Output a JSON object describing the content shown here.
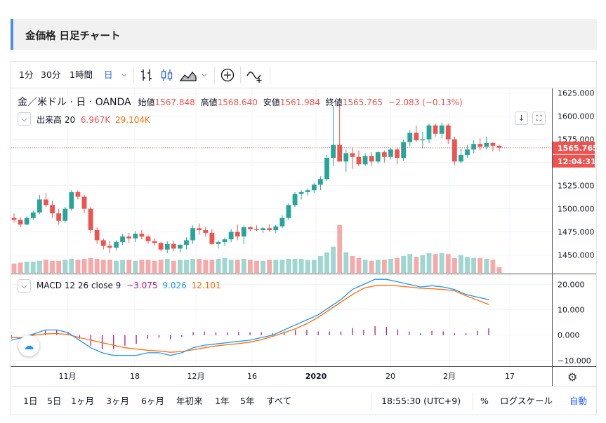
{
  "page_title": "金価格 日足チャート",
  "toolbar": {
    "intervals": [
      "1分",
      "30分",
      "1時間",
      "日"
    ],
    "active_interval": "日"
  },
  "legend": {
    "symbol": "金／米ドル · 日 · OANDA",
    "open_label": "始値",
    "open": "1567.848",
    "high_label": "高値",
    "high": "1568.640",
    "low_label": "安値",
    "low": "1561.984",
    "close_label": "終値",
    "close": "1565.765",
    "change": "−2.083 (−0.13%)"
  },
  "volume_legend": {
    "label": "出来高 20",
    "v1": "6.967K",
    "v2": "29.104K"
  },
  "macd_legend": {
    "label": "MACD 12 26 close 9",
    "v1": "−3.075",
    "v2": "9.026",
    "v3": "12.101"
  },
  "price_axis": {
    "ticks": [
      "1625.000",
      "1600.000",
      "1575.000",
      "1550.000",
      "1525.000",
      "1500.000",
      "1475.000",
      "1450.000"
    ],
    "last_price": "1565.765",
    "countdown": "12:04:31"
  },
  "macd_axis": {
    "ticks": [
      "20.000",
      "10.000",
      "0.000",
      "−10.000"
    ]
  },
  "time_axis": [
    "11月",
    "18",
    "12月",
    "16",
    "2020",
    "20",
    "2月",
    "17"
  ],
  "bottom_bar": {
    "ranges": [
      "1日",
      "5日",
      "1ヶ月",
      "3ヶ月",
      "6ヶ月",
      "年初来",
      "1年",
      "5年",
      "すべて"
    ],
    "clock": "18:55:30 (UTC+9)",
    "percent": "%",
    "log": "ログスケール",
    "auto": "自動"
  },
  "colors": {
    "up": "#26a69a",
    "down": "#ef5350",
    "macd": "#2196f3",
    "signal": "#ff6d00",
    "hist": "#ab1b8e",
    "accent": "#2962ff"
  },
  "chart_data": {
    "type": "candlestick",
    "candles": [
      [
        1490,
        1495,
        1485,
        1488
      ],
      [
        1488,
        1491,
        1480,
        1483
      ],
      [
        1483,
        1492,
        1482,
        1490
      ],
      [
        1490,
        1498,
        1488,
        1496
      ],
      [
        1496,
        1515,
        1494,
        1510
      ],
      [
        1510,
        1517,
        1502,
        1504
      ],
      [
        1504,
        1509,
        1490,
        1495
      ],
      [
        1495,
        1500,
        1483,
        1487
      ],
      [
        1487,
        1502,
        1485,
        1500
      ],
      [
        1500,
        1520,
        1498,
        1518
      ],
      [
        1518,
        1520,
        1510,
        1513
      ],
      [
        1513,
        1515,
        1495,
        1500
      ],
      [
        1500,
        1502,
        1474,
        1477
      ],
      [
        1477,
        1480,
        1462,
        1466
      ],
      [
        1466,
        1468,
        1456,
        1460
      ],
      [
        1460,
        1465,
        1452,
        1458
      ],
      [
        1458,
        1466,
        1455,
        1464
      ],
      [
        1464,
        1473,
        1461,
        1470
      ],
      [
        1470,
        1474,
        1463,
        1468
      ],
      [
        1468,
        1476,
        1464,
        1473
      ],
      [
        1473,
        1477,
        1467,
        1470
      ],
      [
        1470,
        1472,
        1462,
        1465
      ],
      [
        1465,
        1468,
        1460,
        1463
      ],
      [
        1463,
        1464,
        1454,
        1456
      ],
      [
        1456,
        1465,
        1452,
        1462
      ],
      [
        1462,
        1465,
        1454,
        1457
      ],
      [
        1457,
        1462,
        1453,
        1461
      ],
      [
        1461,
        1469,
        1456,
        1466
      ],
      [
        1466,
        1482,
        1462,
        1479
      ],
      [
        1479,
        1484,
        1472,
        1477
      ],
      [
        1477,
        1480,
        1470,
        1474
      ],
      [
        1474,
        1478,
        1461,
        1462
      ],
      [
        1462,
        1466,
        1457,
        1464
      ],
      [
        1464,
        1469,
        1460,
        1467
      ],
      [
        1467,
        1478,
        1464,
        1475
      ],
      [
        1475,
        1483,
        1466,
        1470
      ],
      [
        1470,
        1482,
        1462,
        1480
      ],
      [
        1480,
        1481,
        1476,
        1478
      ],
      [
        1478,
        1482,
        1476,
        1477
      ],
      [
        1477,
        1480,
        1474,
        1479
      ],
      [
        1479,
        1483,
        1475,
        1477
      ],
      [
        1477,
        1483,
        1474,
        1481
      ],
      [
        1481,
        1493,
        1479,
        1490
      ],
      [
        1490,
        1506,
        1488,
        1504
      ],
      [
        1504,
        1518,
        1502,
        1516
      ],
      [
        1516,
        1520,
        1510,
        1518
      ],
      [
        1518,
        1522,
        1514,
        1520
      ],
      [
        1520,
        1528,
        1517,
        1526
      ],
      [
        1526,
        1535,
        1520,
        1532
      ],
      [
        1532,
        1558,
        1530,
        1555
      ],
      [
        1555,
        1611,
        1546,
        1569
      ],
      [
        1569,
        1614,
        1551,
        1551
      ],
      [
        1551,
        1564,
        1540,
        1560
      ],
      [
        1560,
        1566,
        1543,
        1556
      ],
      [
        1556,
        1563,
        1546,
        1548
      ],
      [
        1548,
        1560,
        1546,
        1557
      ],
      [
        1557,
        1561,
        1546,
        1551
      ],
      [
        1551,
        1562,
        1549,
        1561
      ],
      [
        1561,
        1563,
        1550,
        1556
      ],
      [
        1556,
        1566,
        1553,
        1564
      ],
      [
        1564,
        1567,
        1548,
        1555
      ],
      [
        1555,
        1575,
        1552,
        1572
      ],
      [
        1572,
        1585,
        1567,
        1582
      ],
      [
        1582,
        1590,
        1572,
        1574
      ],
      [
        1574,
        1583,
        1565,
        1575
      ],
      [
        1575,
        1592,
        1571,
        1590
      ],
      [
        1590,
        1592,
        1578,
        1581
      ],
      [
        1581,
        1593,
        1576,
        1590
      ],
      [
        1590,
        1592,
        1570,
        1575
      ],
      [
        1575,
        1578,
        1547,
        1551
      ],
      [
        1551,
        1565,
        1549,
        1558
      ],
      [
        1558,
        1569,
        1555,
        1564
      ],
      [
        1564,
        1574,
        1560,
        1570
      ],
      [
        1570,
        1576,
        1563,
        1567
      ],
      [
        1567,
        1578,
        1564,
        1571
      ],
      [
        1571,
        1572,
        1562,
        1568
      ],
      [
        1568,
        1569,
        1562,
        1566
      ]
    ],
    "volume": [
      10,
      11,
      12,
      12,
      13,
      14,
      13,
      13,
      14,
      15,
      14,
      15,
      16,
      15,
      14,
      14,
      13,
      14,
      14,
      13,
      14,
      14,
      13,
      14,
      15,
      13,
      14,
      14,
      15,
      15,
      14,
      14,
      15,
      16,
      14,
      14,
      15,
      14,
      13,
      13,
      14,
      14,
      14,
      15,
      15,
      15,
      14,
      14,
      18,
      22,
      28,
      51,
      22,
      18,
      16,
      14,
      13,
      14,
      14,
      15,
      16,
      18,
      20,
      17,
      19,
      21,
      20,
      21,
      20,
      16,
      19,
      17,
      16,
      16,
      15,
      14,
      6
    ],
    "macd": [
      -2,
      -1,
      0.5,
      2,
      2,
      1,
      -2,
      -5,
      -7,
      -8,
      -8,
      -8,
      -7,
      -7,
      -8,
      -7,
      -5,
      -4,
      -3.5,
      -3,
      -2.5,
      -2,
      -1,
      0,
      2,
      4,
      6,
      8,
      11,
      14,
      18,
      20,
      22,
      22,
      21,
      20,
      19,
      19.5,
      19,
      18,
      16,
      15,
      14
    ],
    "signal": [
      -1,
      -1,
      0,
      0.5,
      0.6,
      0.2,
      -1,
      -2,
      -3,
      -4,
      -5,
      -5.5,
      -6,
      -6.3,
      -6.8,
      -6.5,
      -5.8,
      -5,
      -4.3,
      -3.8,
      -3.4,
      -2.8,
      -1.8,
      -0.5,
      1,
      2.5,
      4.5,
      7,
      10,
      13,
      16,
      18.5,
      19.5,
      19.7,
      19.4,
      19,
      18.5,
      18.3,
      18,
      17.5,
      15.5,
      13.8,
      12.1
    ],
    "macd_range": [
      -12,
      24
    ],
    "price_range": [
      1430,
      1630
    ]
  }
}
